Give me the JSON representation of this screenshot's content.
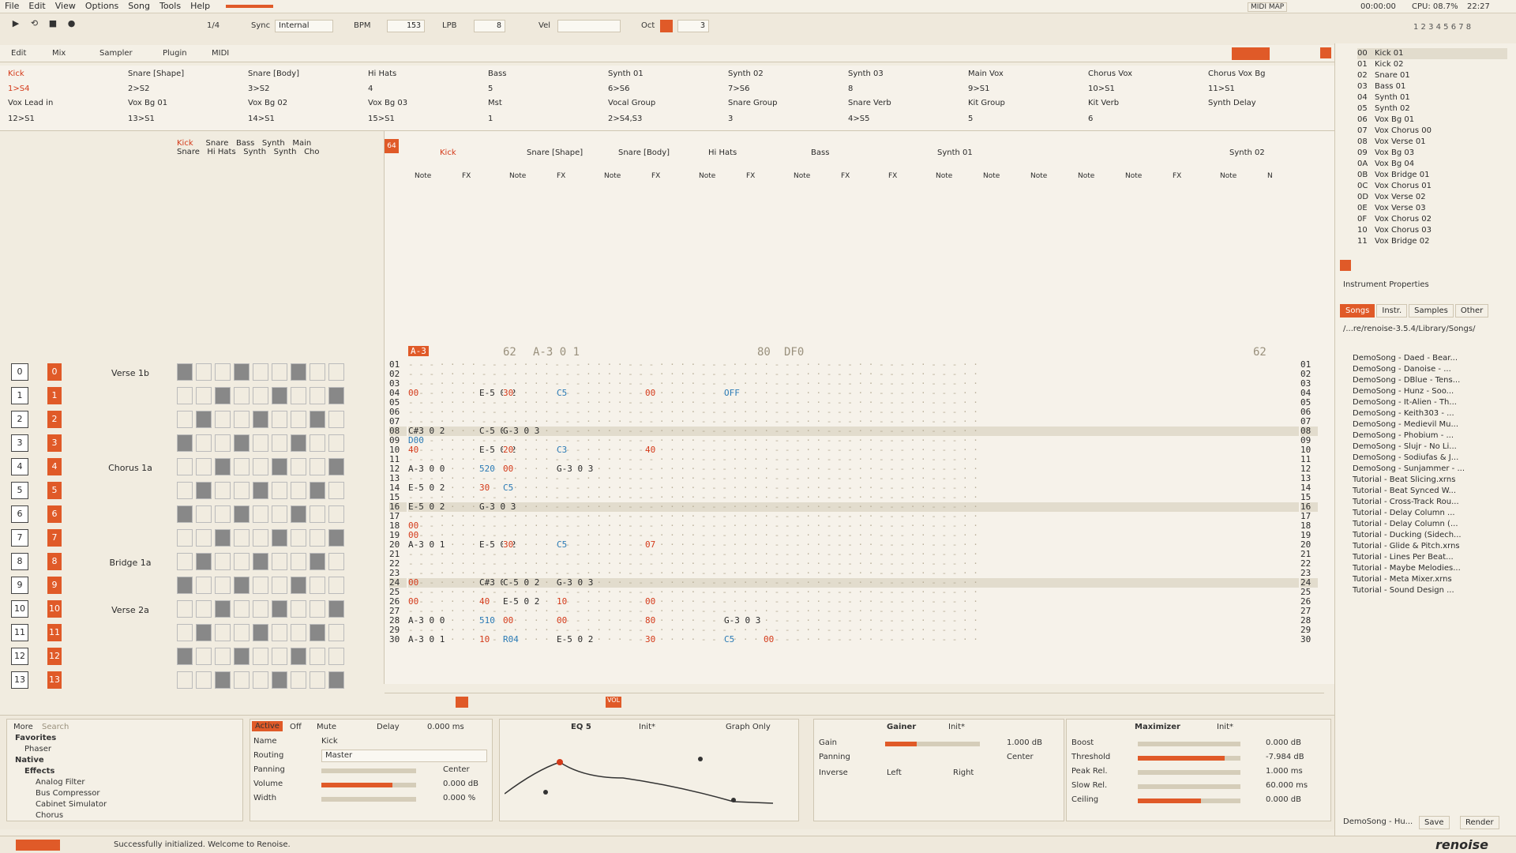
{
  "menu": [
    "File",
    "Edit",
    "View",
    "Options",
    "Song",
    "Tools",
    "Help"
  ],
  "menu_right": {
    "midi_map": "MIDI MAP",
    "time": "00:00:00",
    "cpu": "CPU: 08.7%",
    "clock": "22:27"
  },
  "toolbar": {
    "lines": "1/4",
    "sync_label": "Sync",
    "sync_value": "Internal",
    "bpm_label": "BPM",
    "bpm": "153",
    "lpb_label": "LPB",
    "lpb": "8",
    "vel_label": "Vel",
    "oct_label": "Oct",
    "oct": "3"
  },
  "tabs": [
    "Edit",
    "Mix",
    "Sampler",
    "Plugin",
    "MIDI"
  ],
  "tracks_row1": [
    "Kick",
    "Snare [Shape]",
    "Snare [Body]",
    "Hi Hats",
    "Bass",
    "Synth 01",
    "Synth 02",
    "Synth 03",
    "Main Vox",
    "Chorus Vox",
    "Chorus Vox Bg"
  ],
  "tracks_row2": [
    "1>S4",
    "2>S2",
    "3>S2",
    "4",
    "5",
    "6>S6",
    "7>S6",
    "8",
    "9>S1",
    "10>S1",
    "11>S1"
  ],
  "tracks_row3": [
    "Vox Lead in",
    "Vox Bg 01",
    "Vox Bg 02",
    "Vox Bg 03",
    "Mst",
    "Vocal Group",
    "Snare Group",
    "Snare Verb",
    "Kit Group",
    "Kit Verb",
    "Synth Delay"
  ],
  "tracks_row4": [
    "12>S1",
    "13>S1",
    "14>S1",
    "15>S1",
    "1",
    "2>S4,S3",
    "3",
    "4>S5",
    "5",
    "6"
  ],
  "sequence": [
    {
      "num": "0",
      "sec": "Verse 1b"
    },
    {
      "num": "1",
      "sec": ""
    },
    {
      "num": "2",
      "sec": ""
    },
    {
      "num": "3",
      "sec": ""
    },
    {
      "num": "4",
      "sec": "Chorus 1a"
    },
    {
      "num": "5",
      "sec": ""
    },
    {
      "num": "6",
      "sec": ""
    },
    {
      "num": "7",
      "sec": ""
    },
    {
      "num": "8",
      "sec": "Bridge 1a"
    },
    {
      "num": "9",
      "sec": ""
    },
    {
      "num": "10",
      "sec": "Verse 2a"
    },
    {
      "num": "11",
      "sec": ""
    },
    {
      "num": "12",
      "sec": ""
    },
    {
      "num": "13",
      "sec": ""
    }
  ],
  "matrix_headers": [
    "Kick",
    "Snare",
    "Bass",
    "Synth",
    "Main",
    "Snare",
    "Hi Hats",
    "Synth",
    "Synth",
    "Cho"
  ],
  "pattern_tracks": [
    "Kick",
    "Snare [Shape]",
    "Snare [Body]",
    "Hi Hats",
    "Bass",
    "Synth 01",
    "Synth 02"
  ],
  "pattern_sub": [
    "Note",
    "FX",
    "Note",
    "FX",
    "Note",
    "FX",
    "Note",
    "FX",
    "Note",
    "FX",
    "FX",
    "Note",
    "Note",
    "Note",
    "Note",
    "Note",
    "FX",
    "Note",
    "N"
  ],
  "pattern_rows": [
    "01",
    "02",
    "03",
    "04",
    "05",
    "06",
    "07",
    "08",
    "09",
    "10",
    "11",
    "12",
    "13",
    "14",
    "15",
    "16",
    "17",
    "18",
    "19",
    "20",
    "21",
    "22",
    "23",
    "24",
    "25",
    "26",
    "27",
    "28",
    "29",
    "30"
  ],
  "pattern_header_values": {
    "row0": "A-3",
    "val62": "62",
    "a301": "A-3 0 1",
    "val80": "80",
    "df0": "DF0",
    "val62b": "62"
  },
  "notes": {
    "r04": [
      "00",
      "E-5 0 2",
      "30",
      "C5",
      "00",
      "OFF"
    ],
    "r08": [
      "C#3 0 2",
      "C-5 0 2",
      "G-3 0 3"
    ],
    "r09": [
      "D00"
    ],
    "r10": [
      "40",
      "E-5 0 2",
      "20",
      "C3",
      "40"
    ],
    "r12": [
      "A-3 0 0",
      "520",
      "00",
      "G-3 0 3"
    ],
    "r14": [
      "E-5 0 2",
      "30",
      "C5"
    ],
    "r16": [
      "E-5 0 2",
      "G-3 0 3"
    ],
    "r18": [
      "00"
    ],
    "r19": [
      "00"
    ],
    "r20": [
      "A-3 0 1",
      "E-5 0 2",
      "30",
      "C5",
      "07"
    ],
    "r24": [
      "00",
      "C#3 0 2",
      "C-5 0 2",
      "G-3 0 3"
    ],
    "r26": [
      "00",
      "40",
      "E-5 0 2",
      "10",
      "00"
    ],
    "r28": [
      "A-3 0 0",
      "510",
      "00",
      "00",
      "80",
      "G-3 0 3"
    ],
    "r30": [
      "A-3 0 1",
      "10",
      "R04",
      "E-5 0 2",
      "30",
      "C5",
      "00"
    ]
  },
  "instruments": [
    {
      "id": "00",
      "name": "Kick 01"
    },
    {
      "id": "01",
      "name": "Kick 02"
    },
    {
      "id": "02",
      "name": "Snare 01"
    },
    {
      "id": "03",
      "name": "Bass 01"
    },
    {
      "id": "04",
      "name": "Synth 01"
    },
    {
      "id": "05",
      "name": "Synth 02"
    },
    {
      "id": "06",
      "name": "Vox Bg 01"
    },
    {
      "id": "07",
      "name": "Vox Chorus 00"
    },
    {
      "id": "08",
      "name": "Vox Verse 01"
    },
    {
      "id": "09",
      "name": "Vox Bg 03"
    },
    {
      "id": "0A",
      "name": "Vox Bg 04"
    },
    {
      "id": "0B",
      "name": "Vox Bridge 01"
    },
    {
      "id": "0C",
      "name": "Vox Chorus 01"
    },
    {
      "id": "0D",
      "name": "Vox Verse 02"
    },
    {
      "id": "0E",
      "name": "Vox Verse 03"
    },
    {
      "id": "0F",
      "name": "Vox Chorus 02"
    },
    {
      "id": "10",
      "name": "Vox Chorus 03"
    },
    {
      "id": "11",
      "name": "Vox Bridge 02"
    }
  ],
  "instrument_properties": "Instrument Properties",
  "browser_tabs": [
    "Songs",
    "Instr.",
    "Samples",
    "Other"
  ],
  "browser_path": "/...re/renoise-3.5.4/Library/Songs/",
  "songs": [
    "DemoSong - Daed - Bear...",
    "DemoSong - Danoise - ...",
    "DemoSong - DBlue - Tens...",
    "DemoSong - Hunz - Soo...",
    "DemoSong - It-Alien - Th...",
    "DemoSong - Keith303 - ...",
    "DemoSong - Medievil Mu...",
    "DemoSong - Phobium - ...",
    "DemoSong - Slujr - No Li...",
    "DemoSong - Sodiufas & J...",
    "DemoSong - Sunjammer - ...",
    "Tutorial - Beat Slicing.xrns",
    "Tutorial - Beat Synced W...",
    "Tutorial - Cross-Track Rou...",
    "Tutorial - Delay Column ...",
    "Tutorial - Delay Column (...",
    "Tutorial - Ducking (Sidech...",
    "Tutorial - Glide & Pitch.xrns",
    "Tutorial - Lines Per Beat...",
    "Tutorial - Maybe Melodies...",
    "Tutorial - Meta Mixer.xrns",
    "Tutorial - Sound Design ..."
  ],
  "browser_footer": {
    "song": "DemoSong - Hu...",
    "save": "Save",
    "render": "Render"
  },
  "dsp_browser": {
    "more": "More",
    "search": "Search",
    "favorites": "Favorites",
    "phaser": "Phaser",
    "native": "Native",
    "effects": "Effects",
    "items": [
      "Analog Filter",
      "Bus Compressor",
      "Cabinet Simulator",
      "Chorus"
    ]
  },
  "track_dsp": {
    "active": "Active",
    "off": "Off",
    "mute": "Mute",
    "delay_label": "Delay",
    "delay": "0.000 ms",
    "name_label": "Name",
    "name": "Kick",
    "routing_label": "Routing",
    "routing": "Master",
    "panning_label": "Panning",
    "center": "Center",
    "volume_label": "Volume",
    "volume": "0.000 dB",
    "width_label": "Width",
    "width": "0.000 %"
  },
  "eq": {
    "title": "EQ 5",
    "preset": "Init*",
    "mode": "Graph Only"
  },
  "gainer": {
    "title": "Gainer",
    "preset": "Init*",
    "gain_label": "Gain",
    "gain": "1.000 dB",
    "panning_label": "Panning",
    "panning": "Center",
    "inverse_label": "Inverse",
    "left": "Left",
    "right": "Right"
  },
  "maximizer": {
    "title": "Maximizer",
    "preset": "Init*",
    "boost_label": "Boost",
    "boost": "0.000 dB",
    "threshold_label": "Threshold",
    "threshold": "-7.984 dB",
    "peak_label": "Peak Rel.",
    "peak": "1.000 ms",
    "slow_label": "Slow Rel.",
    "slow": "60.000 ms",
    "ceiling_label": "Ceiling",
    "ceiling": "0.000 dB"
  },
  "status": "Successfully initialized. Welcome to Renoise.",
  "logo": "renoise"
}
